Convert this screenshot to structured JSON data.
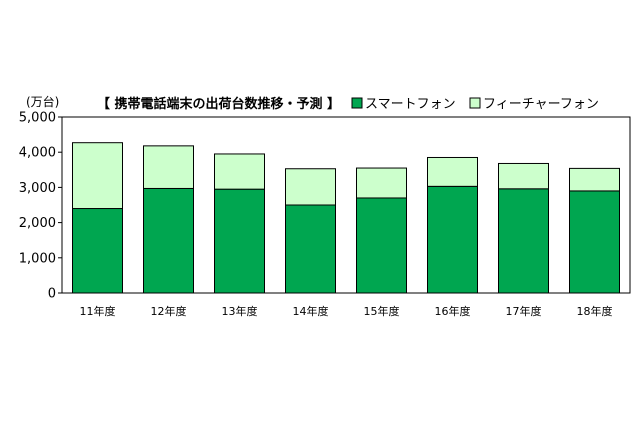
{
  "chart_data": {
    "type": "bar",
    "stacked": true,
    "title": "【 携帯電話端末の出荷台数推移・予測 】",
    "xlabel": "",
    "ylabel": "(万台)",
    "categories": [
      "11年度",
      "12年度",
      "13年度",
      "14年度",
      "15年度",
      "16年度",
      "17年度",
      "18年度"
    ],
    "series": [
      {
        "name": "スマートフォン",
        "color": "#00a650",
        "values": [
          2400,
          2970,
          2950,
          2500,
          2700,
          3030,
          2960,
          2900
        ]
      },
      {
        "name": "フィーチャーフォン",
        "color": "#ccffcc",
        "values": [
          1870,
          1210,
          1000,
          1030,
          850,
          820,
          720,
          640
        ]
      }
    ],
    "ylim": [
      0,
      5000
    ],
    "yticks": [
      0,
      1000,
      2000,
      3000,
      4000,
      5000
    ],
    "ytick_labels": [
      "0",
      "1,000",
      "2,000",
      "3,000",
      "4,000",
      "5,000"
    ],
    "grid": false,
    "legend_position": "top"
  }
}
